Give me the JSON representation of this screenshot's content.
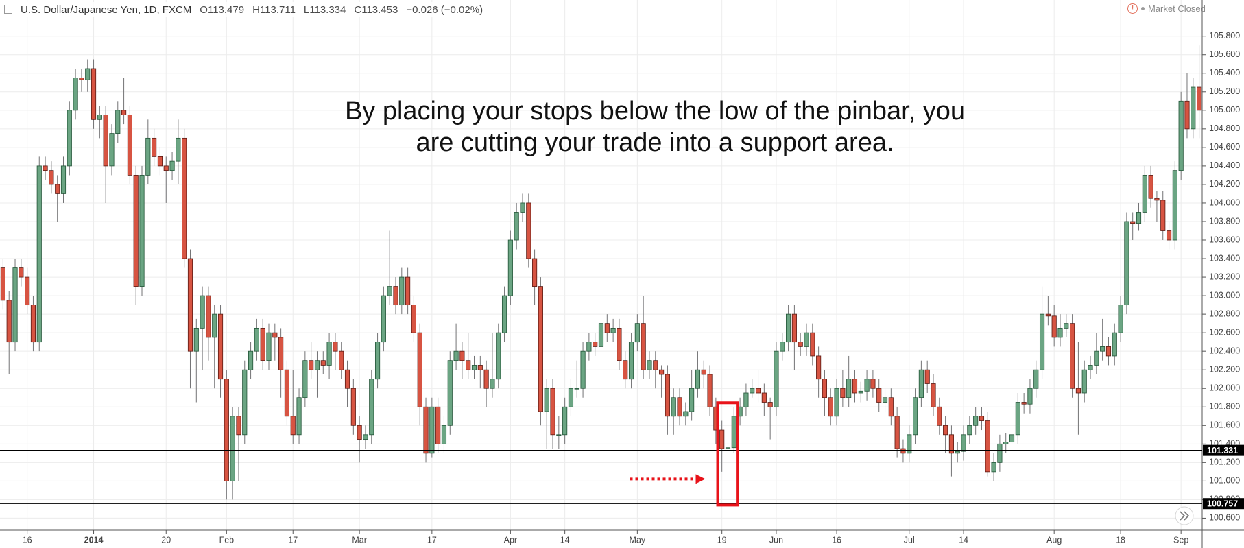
{
  "chart_data": {
    "type": "candlestick",
    "header": {
      "symbol": "U.S. Dollar/Japanese Yen, 1D, FXCM",
      "open": "O113.479",
      "high": "H113.711",
      "low": "L113.334",
      "close": "C113.453",
      "change": "−0.026 (−0.02%)",
      "status": "Market Closed"
    },
    "annotation": [
      "By placing your stops below the low of the pinbar, you",
      "are cutting your trade into a support area."
    ],
    "up_color": "#6ba583",
    "up_border": "#225437",
    "down_color": "#d75442",
    "down_border": "#5b1a13",
    "wick_color": "#737375",
    "grid": true,
    "ylim": [
      100.47,
      106.19
    ],
    "yticks": [
      {
        "value": 100.6,
        "label": "100.600"
      },
      {
        "value": 100.8,
        "label": "100.800"
      },
      {
        "value": 101.0,
        "label": "101.000"
      },
      {
        "value": 101.2,
        "label": "101.200"
      },
      {
        "value": 101.4,
        "label": "101.400"
      },
      {
        "value": 101.6,
        "label": "101.600"
      },
      {
        "value": 101.8,
        "label": "101.800"
      },
      {
        "value": 102.0,
        "label": "102.000"
      },
      {
        "value": 102.2,
        "label": "102.200"
      },
      {
        "value": 102.4,
        "label": "102.400"
      },
      {
        "value": 102.6,
        "label": "102.600"
      },
      {
        "value": 102.8,
        "label": "102.800"
      },
      {
        "value": 103.0,
        "label": "103.000"
      },
      {
        "value": 103.2,
        "label": "103.200"
      },
      {
        "value": 103.4,
        "label": "103.400"
      },
      {
        "value": 103.6,
        "label": "103.600"
      },
      {
        "value": 103.8,
        "label": "103.800"
      },
      {
        "value": 104.0,
        "label": "104.000"
      },
      {
        "value": 104.2,
        "label": "104.200"
      },
      {
        "value": 104.4,
        "label": "104.400"
      },
      {
        "value": 104.6,
        "label": "104.600"
      },
      {
        "value": 104.8,
        "label": "104.800"
      },
      {
        "value": 105.0,
        "label": "105.000"
      },
      {
        "value": 105.2,
        "label": "105.200"
      },
      {
        "value": 105.4,
        "label": "105.400"
      },
      {
        "value": 105.6,
        "label": "105.600"
      },
      {
        "value": 105.8,
        "label": "105.800"
      }
    ],
    "hlines": [
      {
        "value": 101.331,
        "label": "101.331"
      },
      {
        "value": 100.757,
        "label": "100.757"
      }
    ],
    "categories": [
      null,
      null,
      null,
      null,
      "16",
      null,
      null,
      null,
      null,
      null,
      null,
      null,
      null,
      null,
      null,
      "2014",
      null,
      null,
      null,
      null,
      null,
      null,
      null,
      null,
      null,
      null,
      null,
      "20",
      null,
      null,
      null,
      null,
      null,
      null,
      null,
      null,
      null,
      "Feb",
      null,
      null,
      null,
      null,
      null,
      null,
      null,
      null,
      null,
      null,
      "17",
      null,
      null,
      null,
      null,
      null,
      null,
      null,
      null,
      null,
      null,
      "Mar",
      null,
      null,
      null,
      null,
      null,
      null,
      null,
      null,
      null,
      null,
      null,
      "17",
      null,
      null,
      null,
      null,
      null,
      null,
      null,
      null,
      null,
      null,
      null,
      null,
      "Apr",
      null,
      null,
      null,
      null,
      null,
      null,
      null,
      null,
      "14",
      null,
      null,
      null,
      null,
      null,
      null,
      null,
      null,
      null,
      null,
      null,
      "May",
      null,
      null,
      null,
      null,
      null,
      null,
      null,
      null,
      null,
      null,
      null,
      null,
      null,
      "19",
      null,
      null,
      null,
      null,
      null,
      null,
      null,
      null,
      "Jun",
      null,
      null,
      null,
      null,
      null,
      null,
      null,
      null,
      null,
      "16",
      null,
      null,
      null,
      null,
      null,
      null,
      null,
      null,
      null,
      null,
      null,
      "Jul",
      null,
      null,
      null,
      null,
      null,
      null,
      null,
      null,
      "14",
      null,
      null,
      null,
      null,
      null,
      null,
      null,
      null,
      null,
      null,
      null,
      null,
      null,
      null,
      "Aug",
      null,
      null,
      null,
      null,
      null,
      null,
      null,
      null,
      null,
      null,
      "18",
      null,
      null,
      null,
      null,
      null,
      null,
      null,
      null,
      null,
      "Sep",
      null,
      null,
      null
    ],
    "open": [
      103.3,
      102.95,
      102.5,
      103.3,
      103.2,
      102.9,
      102.5,
      104.4,
      104.35,
      104.2,
      104.1,
      104.4,
      105.0,
      105.35,
      105.33,
      105.45,
      104.9,
      104.95,
      104.4,
      104.75,
      105.0,
      104.95,
      104.3,
      103.1,
      104.3,
      104.7,
      104.5,
      104.4,
      104.35,
      104.45,
      104.7,
      103.4,
      102.4,
      102.65,
      103.0,
      102.55,
      102.8,
      102.1,
      101.0,
      101.7,
      101.5,
      102.2,
      102.4,
      102.65,
      102.3,
      102.6,
      102.55,
      102.2,
      101.7,
      101.5,
      101.9,
      102.3,
      102.2,
      102.3,
      102.25,
      102.5,
      102.4,
      102.2,
      102.0,
      101.6,
      101.45,
      101.5,
      102.1,
      102.5,
      103.0,
      103.1,
      102.9,
      103.2,
      102.9,
      102.6,
      101.8,
      101.3,
      101.8,
      101.4,
      101.6,
      102.3,
      102.4,
      102.3,
      102.2,
      102.25,
      102.2,
      102.0,
      102.1,
      102.6,
      103.0,
      103.6,
      103.9,
      104.0,
      103.4,
      103.1,
      101.75,
      102.0,
      101.5,
      101.5,
      101.8,
      102.0,
      102.0,
      102.4,
      102.5,
      102.45,
      102.7,
      102.6,
      102.65,
      102.3,
      102.1,
      102.5,
      102.7,
      102.2,
      102.3,
      102.2,
      102.15,
      101.7,
      101.9,
      101.7,
      101.75,
      102.0,
      102.2,
      102.15,
      101.8,
      101.55,
      101.35,
      101.36,
      101.7,
      101.8,
      101.95,
      102.0,
      101.95,
      101.85,
      101.8,
      102.4,
      102.5,
      102.8,
      102.5,
      102.45,
      102.6,
      102.35,
      102.1,
      101.9,
      101.7,
      102.0,
      101.9,
      102.1,
      101.95,
      101.97,
      102.1,
      102.0,
      101.85,
      101.9,
      101.7,
      101.35,
      101.3,
      101.5,
      101.9,
      102.2,
      102.05,
      101.8,
      101.6,
      101.5,
      101.3,
      101.32,
      101.5,
      101.6,
      101.7,
      101.65,
      101.1,
      101.2,
      101.4,
      101.42,
      101.5,
      101.85,
      101.83,
      102.0,
      102.2,
      102.8,
      102.78,
      102.55,
      102.65,
      102.7,
      102.0,
      101.95,
      102.2,
      102.25,
      102.4,
      102.45,
      102.35,
      102.6,
      102.9,
      103.8,
      103.78,
      103.9,
      104.3,
      104.05,
      104.03,
      103.7,
      103.6,
      104.35,
      105.1,
      104.8,
      105.25
    ],
    "high": [
      103.4,
      103.05,
      103.4,
      103.4,
      103.3,
      103.0,
      104.5,
      104.5,
      104.45,
      104.3,
      104.5,
      105.1,
      105.45,
      105.45,
      105.55,
      105.55,
      105.05,
      105.05,
      104.85,
      105.1,
      105.35,
      105.05,
      104.4,
      104.4,
      104.9,
      104.8,
      104.6,
      104.5,
      104.55,
      104.9,
      104.8,
      103.5,
      102.75,
      103.1,
      103.1,
      102.9,
      102.9,
      102.2,
      101.8,
      101.8,
      102.3,
      102.5,
      102.75,
      102.75,
      102.7,
      102.7,
      102.65,
      102.3,
      102.2,
      102.0,
      102.4,
      102.5,
      102.4,
      102.4,
      102.6,
      102.6,
      102.5,
      102.3,
      102.1,
      101.7,
      101.6,
      102.2,
      102.6,
      103.1,
      103.7,
      103.2,
      103.3,
      103.3,
      103.0,
      102.7,
      101.9,
      101.9,
      101.9,
      101.7,
      102.4,
      102.7,
      102.5,
      102.6,
      102.35,
      102.35,
      102.3,
      102.6,
      102.7,
      103.1,
      103.7,
      104.0,
      104.1,
      104.1,
      103.5,
      103.2,
      102.1,
      102.1,
      101.7,
      101.9,
      102.1,
      102.3,
      102.5,
      102.6,
      102.6,
      102.8,
      102.8,
      102.75,
      102.75,
      102.4,
      102.6,
      102.8,
      103.0,
      102.4,
      102.4,
      102.25,
      102.25,
      102.0,
      102.0,
      101.85,
      102.2,
      102.4,
      102.3,
      102.25,
      101.9,
      101.65,
      101.45,
      101.8,
      101.9,
      102.05,
      102.1,
      102.2,
      102.05,
      101.9,
      102.5,
      102.6,
      102.9,
      102.9,
      102.6,
      102.7,
      102.7,
      102.45,
      102.2,
      102.0,
      102.1,
      102.2,
      102.35,
      102.2,
      102.07,
      102.2,
      102.2,
      102.1,
      102.0,
      102.0,
      101.8,
      101.45,
      101.6,
      102.0,
      102.3,
      102.3,
      102.15,
      101.9,
      101.7,
      101.6,
      101.42,
      101.6,
      101.7,
      101.8,
      101.8,
      101.75,
      101.3,
      101.5,
      101.52,
      101.6,
      101.95,
      101.95,
      102.1,
      102.3,
      103.1,
      103.0,
      102.9,
      102.8,
      102.8,
      102.8,
      102.5,
      102.3,
      102.35,
      102.6,
      102.75,
      102.55,
      102.7,
      103.0,
      103.9,
      103.9,
      104.0,
      104.4,
      104.4,
      104.13,
      104.13,
      103.8,
      104.45,
      105.2,
      105.4,
      105.35,
      105.7
    ],
    "low": [
      102.85,
      102.15,
      102.4,
      103.1,
      102.8,
      102.4,
      102.4,
      104.25,
      104.1,
      103.8,
      104.0,
      104.3,
      104.9,
      105.2,
      105.2,
      104.8,
      104.7,
      104.0,
      104.3,
      104.65,
      104.85,
      104.2,
      102.9,
      103.0,
      104.2,
      104.4,
      104.3,
      104.0,
      104.25,
      104.2,
      103.3,
      102.0,
      101.85,
      102.2,
      102.3,
      102.0,
      101.9,
      100.8,
      100.8,
      101.0,
      101.4,
      102.1,
      102.3,
      102.2,
      102.2,
      102.3,
      101.9,
      101.6,
      101.4,
      101.4,
      101.8,
      102.1,
      101.9,
      102.15,
      102.1,
      102.2,
      102.1,
      101.8,
      101.5,
      101.2,
      101.35,
      101.4,
      102.0,
      102.4,
      102.9,
      102.8,
      102.8,
      102.8,
      102.5,
      101.6,
      101.2,
      101.25,
      101.3,
      101.3,
      101.5,
      102.2,
      102.1,
      102.1,
      102.1,
      102.0,
      101.8,
      101.9,
      102.0,
      102.5,
      102.9,
      103.5,
      103.8,
      103.3,
      102.9,
      101.6,
      101.35,
      101.35,
      101.35,
      101.4,
      101.7,
      101.9,
      101.9,
      102.3,
      102.35,
      102.35,
      102.5,
      102.5,
      102.2,
      102.0,
      102.0,
      102.4,
      102.1,
      102.1,
      102.0,
      101.9,
      101.5,
      101.5,
      101.6,
      101.6,
      101.65,
      101.9,
      102.0,
      101.7,
      101.4,
      101.1,
      100.8,
      101.3,
      101.6,
      101.7,
      101.9,
      101.85,
      101.7,
      101.45,
      101.7,
      102.3,
      102.4,
      102.2,
      102.35,
      102.35,
      102.25,
      101.9,
      101.7,
      101.6,
      101.6,
      101.8,
      101.8,
      101.85,
      101.85,
      101.87,
      101.9,
      101.75,
      101.75,
      101.6,
      101.25,
      101.2,
      101.2,
      101.4,
      101.8,
      101.95,
      101.7,
      101.5,
      101.3,
      101.05,
      101.2,
      101.22,
      101.4,
      101.5,
      101.55,
      101.05,
      101.0,
      101.1,
      101.3,
      101.32,
      101.4,
      101.73,
      101.73,
      101.9,
      102.1,
      102.68,
      102.45,
      102.45,
      102.55,
      101.9,
      101.5,
      101.85,
      102.1,
      102.15,
      102.3,
      102.25,
      102.25,
      102.5,
      102.8,
      103.6,
      103.7,
      103.8,
      103.95,
      103.8,
      103.6,
      103.5,
      103.5,
      104.25,
      104.7,
      104.7,
      104.7
    ],
    "close": [
      102.95,
      102.5,
      103.3,
      103.2,
      102.9,
      102.5,
      104.4,
      104.35,
      104.2,
      104.1,
      104.4,
      105.0,
      105.35,
      105.33,
      105.45,
      104.9,
      104.95,
      104.4,
      104.75,
      105.0,
      104.95,
      104.3,
      103.1,
      104.3,
      104.7,
      104.5,
      104.4,
      104.35,
      104.45,
      104.7,
      103.4,
      102.4,
      102.65,
      103.0,
      102.55,
      102.8,
      102.1,
      101.0,
      101.7,
      101.5,
      102.2,
      102.4,
      102.65,
      102.3,
      102.6,
      102.55,
      102.2,
      101.7,
      101.5,
      101.9,
      102.3,
      102.2,
      102.3,
      102.25,
      102.5,
      102.4,
      102.2,
      102.0,
      101.6,
      101.45,
      101.5,
      102.1,
      102.5,
      103.0,
      103.1,
      102.9,
      103.2,
      102.9,
      102.6,
      101.8,
      101.3,
      101.8,
      101.4,
      101.6,
      102.3,
      102.4,
      102.3,
      102.2,
      102.25,
      102.2,
      102.0,
      102.1,
      102.6,
      103.0,
      103.6,
      103.9,
      104.0,
      103.4,
      103.1,
      101.75,
      102.0,
      101.5,
      101.5,
      101.8,
      102.0,
      102.0,
      102.4,
      102.5,
      102.45,
      102.7,
      102.6,
      102.65,
      102.3,
      102.1,
      102.5,
      102.7,
      102.2,
      102.3,
      102.2,
      102.15,
      101.7,
      101.9,
      101.7,
      101.75,
      102.0,
      102.2,
      102.15,
      101.8,
      101.55,
      101.35,
      101.36,
      101.7,
      101.8,
      101.95,
      102.0,
      101.95,
      101.85,
      101.8,
      102.4,
      102.5,
      102.8,
      102.5,
      102.45,
      102.6,
      102.35,
      102.1,
      101.9,
      101.7,
      102.0,
      101.9,
      102.1,
      101.95,
      101.97,
      102.1,
      102.0,
      101.85,
      101.9,
      101.7,
      101.35,
      101.3,
      101.5,
      101.9,
      102.2,
      102.05,
      101.8,
      101.6,
      101.5,
      101.3,
      101.32,
      101.5,
      101.6,
      101.7,
      101.65,
      101.1,
      101.2,
      101.4,
      101.42,
      101.5,
      101.85,
      101.83,
      102.0,
      102.2,
      102.8,
      102.78,
      102.55,
      102.65,
      102.7,
      102.0,
      101.95,
      102.2,
      102.25,
      102.4,
      102.45,
      102.35,
      102.6,
      102.9,
      103.8,
      103.78,
      103.9,
      104.3,
      104.05,
      104.03,
      103.7,
      103.6,
      104.35,
      105.1,
      104.8,
      105.25,
      105.0
    ]
  }
}
